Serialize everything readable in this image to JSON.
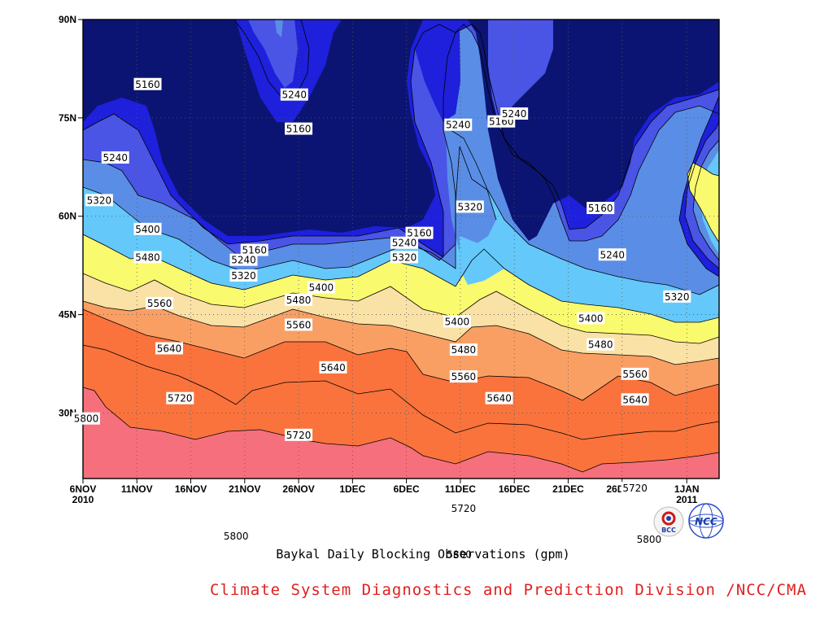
{
  "colors": {
    "band_le_5160": "#0c1473",
    "band_5160_5240": "#1e20dc",
    "band_5240_5320": "#4a55e6",
    "band_5320_5400": "#5a8ee6",
    "band_5400_5480": "#64c8fa",
    "band_5480_5560": "#fafa6e",
    "band_5560_5640": "#fae1a5",
    "band_5640_5720": "#fa9f64",
    "band_5720_5800": "#fa733c",
    "band_gt_5800": "#f5707c",
    "credit_text": "#e02020"
  },
  "logos": {
    "bcc": "BCC",
    "ncc": "NCC"
  },
  "chart_data": {
    "type": "contour",
    "title": "Baykal Daily Blocking Observations (gpm)",
    "credit": "Climate System Diagnostics and Prediction Division /NCC/CMA",
    "x_ticks": [
      {
        "label": "6NOV",
        "sub": "2010",
        "day": 0
      },
      {
        "label": "11NOV",
        "sub": "",
        "day": 5
      },
      {
        "label": "16NOV",
        "sub": "",
        "day": 10
      },
      {
        "label": "21NOV",
        "sub": "",
        "day": 15
      },
      {
        "label": "26NOV",
        "sub": "",
        "day": 20
      },
      {
        "label": "1DEC",
        "sub": "",
        "day": 25
      },
      {
        "label": "6DEC",
        "sub": "",
        "day": 30
      },
      {
        "label": "11DEC",
        "sub": "",
        "day": 35
      },
      {
        "label": "16DEC",
        "sub": "",
        "day": 40
      },
      {
        "label": "21DEC",
        "sub": "",
        "day": 45
      },
      {
        "label": "26DEC",
        "sub": "",
        "day": 50
      },
      {
        "label": "1JAN",
        "sub": "2011",
        "day": 56
      }
    ],
    "y_ticks": [
      {
        "label": "30N",
        "lat": 30
      },
      {
        "label": "45N",
        "lat": 45
      },
      {
        "label": "60N",
        "lat": 60
      },
      {
        "label": "75N",
        "lat": 75
      },
      {
        "label": "90N",
        "lat": 90
      }
    ],
    "xlim": [
      0,
      59
    ],
    "ylim": [
      20,
      90
    ],
    "contour_levels": [
      5160,
      5240,
      5320,
      5400,
      5480,
      5560,
      5640,
      5720,
      5800
    ],
    "contour_labels": [
      {
        "text": "5160",
        "day": 6.0,
        "lat": 80.1
      },
      {
        "text": "5240",
        "day": 19.6,
        "lat": 78.5
      },
      {
        "text": "5160",
        "day": 20.0,
        "lat": 73.3
      },
      {
        "text": "5240",
        "day": 3.0,
        "lat": 68.9
      },
      {
        "text": "5240",
        "day": 34.8,
        "lat": 73.9
      },
      {
        "text": "5160",
        "day": 38.8,
        "lat": 74.4
      },
      {
        "text": "5240",
        "day": 40.0,
        "lat": 75.6
      },
      {
        "text": "5320",
        "day": 1.5,
        "lat": 62.4
      },
      {
        "text": "5320",
        "day": 35.9,
        "lat": 61.4
      },
      {
        "text": "5160",
        "day": 48.0,
        "lat": 61.2
      },
      {
        "text": "5400",
        "day": 6.0,
        "lat": 58.0
      },
      {
        "text": "5160",
        "day": 31.2,
        "lat": 57.4
      },
      {
        "text": "5240",
        "day": 29.8,
        "lat": 55.9
      },
      {
        "text": "5160",
        "day": 15.9,
        "lat": 54.8
      },
      {
        "text": "5240",
        "day": 14.9,
        "lat": 53.3
      },
      {
        "text": "5320",
        "day": 29.8,
        "lat": 53.7
      },
      {
        "text": "5240",
        "day": 49.1,
        "lat": 54.1
      },
      {
        "text": "5480",
        "day": 6.0,
        "lat": 53.7
      },
      {
        "text": "5320",
        "day": 14.9,
        "lat": 50.9
      },
      {
        "text": "5400",
        "day": 22.1,
        "lat": 49.1
      },
      {
        "text": "5480",
        "day": 20.0,
        "lat": 47.2
      },
      {
        "text": "5320",
        "day": 55.1,
        "lat": 47.7
      },
      {
        "text": "5560",
        "day": 7.1,
        "lat": 46.7
      },
      {
        "text": "5400",
        "day": 34.7,
        "lat": 43.9
      },
      {
        "text": "5400",
        "day": 47.1,
        "lat": 44.4
      },
      {
        "text": "5560",
        "day": 20.0,
        "lat": 43.4
      },
      {
        "text": "5640",
        "day": 8.0,
        "lat": 39.8
      },
      {
        "text": "5480",
        "day": 35.3,
        "lat": 39.6
      },
      {
        "text": "5480",
        "day": 48.0,
        "lat": 40.4
      },
      {
        "text": "5640",
        "day": 23.2,
        "lat": 36.9
      },
      {
        "text": "5560",
        "day": 35.3,
        "lat": 35.5
      },
      {
        "text": "5560",
        "day": 51.2,
        "lat": 35.9
      },
      {
        "text": "5720",
        "day": 9.0,
        "lat": 32.2
      },
      {
        "text": "5640",
        "day": 38.6,
        "lat": 32.2
      },
      {
        "text": "5640",
        "day": 51.2,
        "lat": 32.0
      },
      {
        "text": "5800",
        "day": 0.3,
        "lat": 29.1
      },
      {
        "text": "5720",
        "day": 20.0,
        "lat": 26.6
      },
      {
        "text": "5720",
        "day": 51.2,
        "lat": 18.5
      },
      {
        "text": "5720",
        "day": 35.3,
        "lat": 15.4
      },
      {
        "text": "5800",
        "day": 14.2,
        "lat": 11.2
      },
      {
        "text": "5800",
        "day": 52.5,
        "lat": 10.7
      },
      {
        "text": "5800",
        "day": 34.9,
        "lat": 8.4
      }
    ]
  }
}
